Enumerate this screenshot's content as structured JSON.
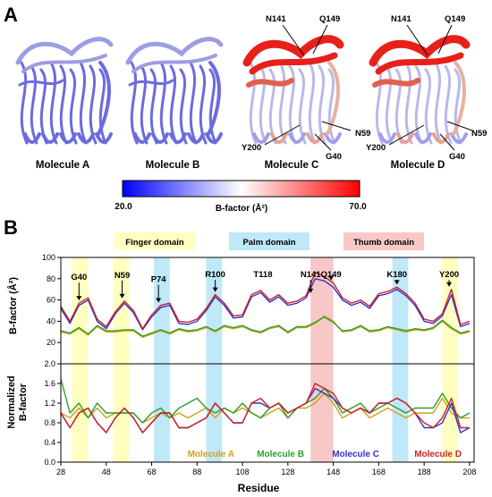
{
  "panel_a": {
    "letter": "A",
    "molecules": [
      "Molecule A",
      "Molecule B",
      "Molecule C",
      "Molecule D"
    ],
    "residue_labels_c": [
      "N141",
      "Q149",
      "N59",
      "Y200",
      "G40"
    ],
    "residue_labels_d": [
      "N141",
      "Q149",
      "N59",
      "Y200",
      "G40"
    ],
    "colorbar": {
      "min_label": "20.0",
      "max_label": "70.0",
      "label": "B-factor (Å²)",
      "colors": [
        "#0000ff",
        "#ffffff",
        "#ff0000"
      ]
    },
    "tube_colors": {
      "cool": "#6b6be0",
      "hot": "#e8201a"
    }
  },
  "panel_b": {
    "letter": "B",
    "domains": [
      {
        "label": "Finger domain",
        "color": "#ffffc0"
      },
      {
        "label": "Palm domain",
        "color": "#bfe8f8"
      },
      {
        "label": "Thumb domain",
        "color": "#f8c8c8"
      }
    ],
    "bands": [
      {
        "start": 33,
        "end": 40,
        "domain": 0
      },
      {
        "start": 51,
        "end": 58,
        "domain": 0
      },
      {
        "start": 69,
        "end": 76,
        "domain": 1
      },
      {
        "start": 92,
        "end": 99,
        "domain": 1
      },
      {
        "start": 138,
        "end": 148,
        "domain": 2
      },
      {
        "start": 174,
        "end": 181,
        "domain": 1
      },
      {
        "start": 196,
        "end": 203,
        "domain": 0
      }
    ],
    "peak_labels": [
      {
        "text": "G40",
        "x": 36,
        "arrow": true
      },
      {
        "text": "N59",
        "x": 55,
        "arrow": true
      },
      {
        "text": "P74",
        "x": 71,
        "arrow": true
      },
      {
        "text": "R100",
        "x": 96,
        "arrow": true
      },
      {
        "text": "T118",
        "x": 117,
        "arrow": false
      },
      {
        "text": "N141",
        "x": 138,
        "arrow": true
      },
      {
        "text": "Q149",
        "x": 147,
        "arrow": true
      },
      {
        "text": "K180",
        "x": 176,
        "arrow": true
      },
      {
        "text": "Y200",
        "x": 199,
        "arrow": true
      }
    ],
    "xlabel": "Residue",
    "series_names": [
      "Molecule A",
      "Molecule B",
      "Molecule C",
      "Molecule D"
    ],
    "series_colors": [
      "#d4a017",
      "#2ca02c",
      "#3333cc",
      "#cc2222"
    ]
  },
  "chart_data": [
    {
      "type": "line",
      "ylabel": "B-factor (Å²)",
      "xlim": [
        28,
        210
      ],
      "ylim": [
        0,
        100
      ],
      "xticks": [
        28,
        48,
        68,
        88,
        108,
        128,
        148,
        168,
        188,
        208
      ],
      "yticks": [
        20,
        40,
        60,
        80,
        100
      ],
      "x": [
        28,
        32,
        36,
        40,
        44,
        48,
        52,
        56,
        60,
        64,
        68,
        72,
        76,
        80,
        84,
        88,
        92,
        96,
        100,
        104,
        108,
        112,
        116,
        120,
        124,
        128,
        132,
        136,
        140,
        144,
        148,
        152,
        156,
        160,
        164,
        168,
        172,
        176,
        180,
        184,
        188,
        192,
        196,
        200,
        204,
        208
      ],
      "series": [
        {
          "name": "Molecule A",
          "values": [
            30,
            28,
            33,
            27,
            35,
            30,
            30,
            31,
            31,
            25,
            28,
            31,
            28,
            32,
            30,
            31,
            34,
            30,
            35,
            33,
            35,
            31,
            29,
            33,
            35,
            29,
            34,
            34,
            38,
            45,
            40,
            30,
            31,
            35,
            30,
            31,
            34,
            32,
            30,
            32,
            31,
            33,
            40,
            33,
            28,
            30
          ]
        },
        {
          "name": "Molecule B",
          "values": [
            31,
            29,
            34,
            28,
            36,
            31,
            31,
            32,
            32,
            26,
            29,
            32,
            29,
            33,
            31,
            32,
            35,
            31,
            36,
            34,
            36,
            32,
            30,
            34,
            36,
            30,
            35,
            35,
            39,
            44,
            39,
            31,
            32,
            36,
            31,
            32,
            35,
            33,
            31,
            33,
            32,
            34,
            41,
            34,
            29,
            31
          ]
        },
        {
          "name": "Molecule C",
          "values": [
            52,
            38,
            55,
            60,
            40,
            33,
            47,
            57,
            48,
            32,
            44,
            53,
            55,
            38,
            37,
            40,
            50,
            63,
            55,
            43,
            44,
            63,
            67,
            58,
            63,
            55,
            57,
            62,
            80,
            78,
            72,
            60,
            55,
            58,
            52,
            64,
            66,
            70,
            64,
            55,
            40,
            38,
            45,
            65,
            35,
            38
          ]
        },
        {
          "name": "Molecule D",
          "values": [
            54,
            40,
            57,
            62,
            42,
            35,
            49,
            59,
            50,
            33,
            46,
            55,
            57,
            40,
            39,
            42,
            52,
            65,
            57,
            45,
            46,
            65,
            69,
            60,
            65,
            57,
            59,
            64,
            86,
            82,
            76,
            62,
            57,
            60,
            54,
            66,
            68,
            72,
            66,
            57,
            42,
            40,
            47,
            70,
            37,
            40
          ]
        }
      ]
    },
    {
      "type": "line",
      "ylabel": "Normalized B-factor",
      "xlim": [
        28,
        210
      ],
      "ylim": [
        0,
        2
      ],
      "xticks": [
        28,
        48,
        68,
        88,
        108,
        128,
        148,
        168,
        188,
        208
      ],
      "yticks": [
        0.0,
        0.4,
        0.8,
        1.2,
        1.6,
        2.0
      ],
      "x": [
        28,
        32,
        36,
        40,
        44,
        48,
        52,
        56,
        60,
        64,
        68,
        72,
        76,
        80,
        84,
        88,
        92,
        96,
        100,
        104,
        108,
        112,
        116,
        120,
        124,
        128,
        132,
        136,
        140,
        144,
        148,
        152,
        156,
        160,
        164,
        168,
        172,
        176,
        180,
        184,
        188,
        192,
        196,
        200,
        204,
        208
      ],
      "series": [
        {
          "name": "Molecule A",
          "values": [
            1.0,
            0.9,
            1.1,
            0.9,
            1.1,
            0.9,
            1.0,
            1.0,
            1.0,
            0.8,
            0.9,
            1.0,
            0.9,
            1.0,
            0.9,
            1.0,
            1.1,
            0.9,
            1.1,
            1.0,
            1.1,
            1.0,
            0.9,
            1.0,
            1.1,
            0.9,
            1.1,
            1.1,
            1.2,
            1.4,
            1.2,
            0.9,
            1.0,
            1.1,
            0.9,
            1.0,
            1.1,
            1.0,
            0.9,
            1.0,
            1.0,
            1.0,
            1.3,
            1.0,
            0.9,
            0.9
          ]
        },
        {
          "name": "Molecule B",
          "values": [
            1.7,
            1.0,
            1.2,
            0.9,
            1.2,
            1.0,
            1.0,
            1.0,
            1.0,
            0.8,
            1.0,
            1.1,
            0.9,
            1.1,
            1.2,
            1.3,
            1.1,
            1.0,
            1.1,
            1.0,
            1.2,
            1.0,
            0.9,
            1.1,
            1.2,
            0.9,
            1.1,
            1.2,
            1.3,
            1.5,
            1.3,
            1.0,
            1.1,
            1.2,
            1.0,
            1.1,
            1.2,
            1.1,
            1.0,
            1.1,
            1.1,
            1.1,
            1.4,
            1.1,
            0.9,
            1.0
          ]
        },
        {
          "name": "Molecule C",
          "values": [
            1.0,
            0.7,
            1.0,
            1.1,
            0.8,
            0.6,
            0.9,
            1.1,
            0.9,
            0.6,
            0.8,
            1.0,
            1.0,
            0.7,
            0.7,
            0.8,
            0.9,
            1.2,
            1.0,
            0.8,
            0.8,
            1.2,
            1.2,
            1.1,
            1.2,
            1.0,
            1.1,
            1.2,
            1.5,
            1.4,
            1.3,
            1.1,
            1.0,
            1.1,
            1.0,
            1.2,
            1.2,
            1.3,
            1.2,
            1.0,
            0.7,
            0.7,
            0.8,
            1.2,
            0.6,
            0.7
          ]
        },
        {
          "name": "Molecule D",
          "values": [
            1.0,
            0.7,
            1.0,
            1.1,
            0.8,
            0.6,
            0.9,
            1.1,
            0.9,
            0.6,
            0.8,
            1.0,
            1.0,
            0.7,
            0.7,
            0.8,
            0.9,
            1.2,
            1.0,
            0.8,
            0.8,
            1.2,
            1.3,
            1.1,
            1.2,
            1.0,
            1.1,
            1.2,
            1.6,
            1.5,
            1.4,
            1.1,
            1.0,
            1.1,
            1.0,
            1.2,
            1.2,
            1.3,
            1.2,
            1.0,
            0.8,
            0.7,
            0.9,
            1.3,
            0.7,
            0.7
          ]
        }
      ]
    }
  ]
}
